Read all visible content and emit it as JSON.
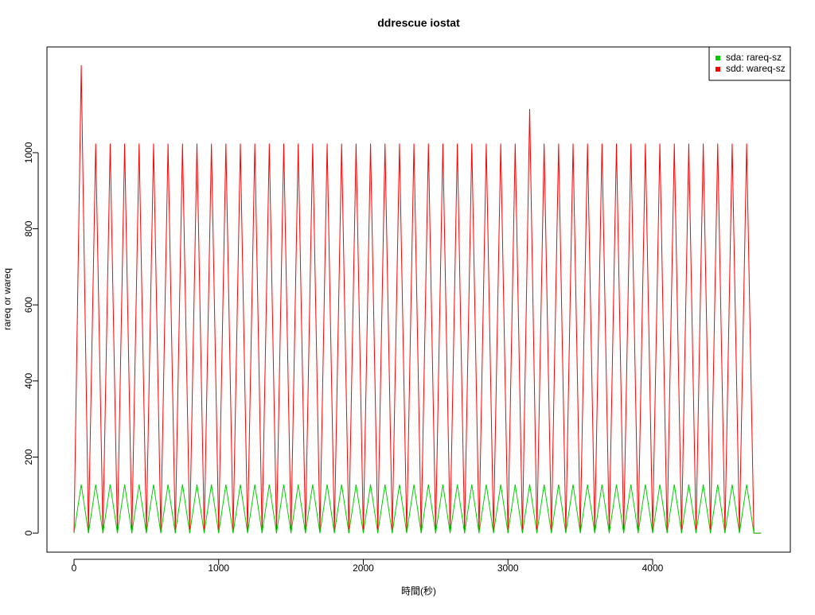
{
  "chart_data": {
    "type": "line",
    "title": "ddrescue iostat",
    "xlabel": "時間(秒)",
    "ylabel": "rareq or wareq",
    "x": [
      0,
      50,
      100,
      150,
      200,
      250,
      300,
      350,
      400,
      450,
      500,
      550,
      600,
      650,
      700,
      750,
      800,
      850,
      900,
      950,
      1000,
      1050,
      1100,
      1150,
      1200,
      1250,
      1300,
      1350,
      1400,
      1450,
      1500,
      1550,
      1600,
      1650,
      1700,
      1750,
      1800,
      1850,
      1900,
      1950,
      2000,
      2050,
      2100,
      2150,
      2200,
      2250,
      2300,
      2350,
      2400,
      2450,
      2500,
      2550,
      2600,
      2650,
      2700,
      2750,
      2800,
      2850,
      2900,
      2950,
      3000,
      3050,
      3100,
      3150,
      3200,
      3250,
      3300,
      3350,
      3400,
      3450,
      3500,
      3550,
      3600,
      3650,
      3700,
      3750,
      3800,
      3850,
      3900,
      3950,
      4000,
      4050,
      4100,
      4150,
      4200,
      4250,
      4300,
      4350,
      4400,
      4450,
      4500,
      4550,
      4600,
      4650,
      4700,
      4750
    ],
    "series": [
      {
        "name": "sdd: wareq-sz",
        "color": "#ff0000",
        "values": [
          0,
          1230,
          0,
          1024,
          0,
          1024,
          0,
          1024,
          0,
          1024,
          0,
          1024,
          0,
          1024,
          0,
          1024,
          0,
          1024,
          0,
          1024,
          0,
          1024,
          0,
          1024,
          0,
          1024,
          0,
          1024,
          0,
          1024,
          0,
          1024,
          0,
          1024,
          0,
          1024,
          0,
          1024,
          0,
          1024,
          0,
          1024,
          0,
          1024,
          0,
          1024,
          0,
          1024,
          0,
          1024,
          0,
          1024,
          0,
          1024,
          0,
          1024,
          0,
          1024,
          0,
          1024,
          0,
          1024,
          0,
          1115,
          0,
          1024,
          0,
          1024,
          0,
          1024,
          0,
          1024,
          0,
          1024,
          0,
          1024,
          0,
          1024,
          0,
          1024,
          0,
          1024,
          0,
          1024,
          0,
          1024,
          0,
          1024,
          0,
          1024,
          0,
          1024,
          0,
          1024,
          0,
          0
        ]
      },
      {
        "name": "sda: rareq-sz",
        "color": "#00cd00",
        "values": [
          0,
          128,
          0,
          128,
          0,
          128,
          0,
          128,
          0,
          128,
          0,
          128,
          0,
          128,
          0,
          128,
          0,
          128,
          0,
          128,
          0,
          128,
          0,
          128,
          0,
          128,
          0,
          128,
          0,
          128,
          0,
          128,
          0,
          128,
          0,
          128,
          0,
          128,
          0,
          128,
          0,
          128,
          0,
          128,
          0,
          128,
          0,
          128,
          0,
          128,
          0,
          128,
          0,
          128,
          0,
          128,
          0,
          128,
          0,
          128,
          0,
          128,
          0,
          128,
          0,
          128,
          0,
          128,
          0,
          128,
          0,
          128,
          0,
          128,
          0,
          128,
          0,
          128,
          0,
          128,
          0,
          128,
          0,
          128,
          0,
          128,
          0,
          128,
          0,
          128,
          0,
          128,
          0,
          128,
          0,
          0
        ]
      }
    ],
    "legend_order": [
      1,
      0
    ],
    "xlim": [
      -187,
      4952
    ],
    "xticks": [
      0,
      1000,
      2000,
      3000,
      4000
    ],
    "ylim": [
      -50,
      1278
    ],
    "yticks": [
      0,
      200,
      400,
      600,
      800,
      1000
    ],
    "legend": "top-right"
  }
}
